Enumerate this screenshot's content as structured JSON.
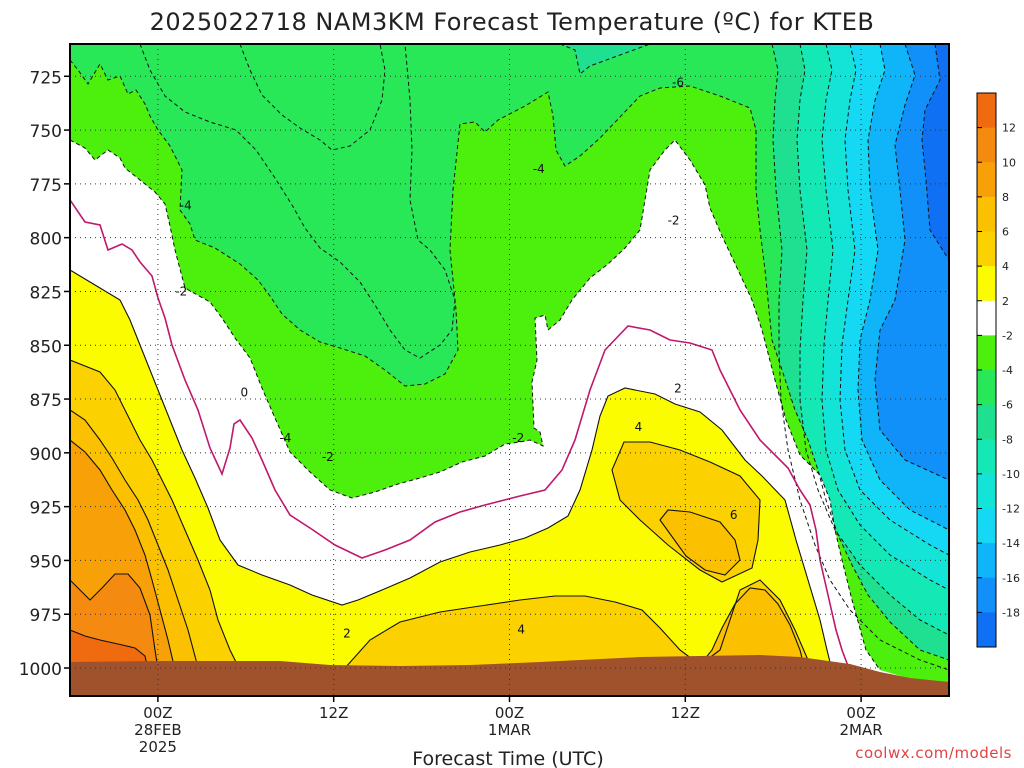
{
  "chart_data": {
    "type": "contour",
    "title": "2025022718 NAM3KM Forecast Temperature (ºC) for KTEB",
    "xlabel": "Forecast Time (UTC)",
    "ylabel": "",
    "credit": "coolwx.com/models",
    "y_ticks": [
      "725",
      "750",
      "775",
      "800",
      "825",
      "850",
      "875",
      "900",
      "925",
      "950",
      "975",
      "1000"
    ],
    "y_tick_values": [
      725,
      750,
      775,
      800,
      825,
      850,
      875,
      900,
      925,
      950,
      975,
      1000
    ],
    "ylim": [
      710,
      1013
    ],
    "y_scale": "pressure (hPa), increasing downward",
    "x_ticks": [
      {
        "line1": "00Z",
        "line2": "28FEB",
        "line3": "2025"
      },
      {
        "line1": "12Z",
        "line2": "",
        "line3": ""
      },
      {
        "line1": "00Z",
        "line2": "1MAR",
        "line3": ""
      },
      {
        "line1": "12Z",
        "line2": "",
        "line3": ""
      },
      {
        "line1": "00Z",
        "line2": "2MAR",
        "line3": ""
      }
    ],
    "x_tick_hours": [
      6,
      18,
      30,
      42,
      54
    ],
    "xlim": [
      0,
      60
    ],
    "grid": true,
    "colorbar": {
      "labels": [
        "12",
        "10",
        "8",
        "6",
        "4",
        "2",
        "-2",
        "-4",
        "-6",
        "-8",
        "-10",
        "-12",
        "-14",
        "-16",
        "-18"
      ],
      "bins": [
        {
          "range": "> 12",
          "color": "#f06a10"
        },
        {
          "range": "10 to 12",
          "color": "#f58a10"
        },
        {
          "range": "8 to 10",
          "color": "#f8a008"
        },
        {
          "range": "6 to 8",
          "color": "#fbc000"
        },
        {
          "range": "4 to 6",
          "color": "#fbd200"
        },
        {
          "range": "2 to 4",
          "color": "#fcfc00"
        },
        {
          "range": "-2 to 2",
          "color": "#ffffff"
        },
        {
          "range": "-4 to -2",
          "color": "#4cf00c"
        },
        {
          "range": "-6 to -4",
          "color": "#28e858"
        },
        {
          "range": "-8 to -6",
          "color": "#1ee090"
        },
        {
          "range": "-10 to -8",
          "color": "#14e8b4"
        },
        {
          "range": "-12 to -10",
          "color": "#14e4d8"
        },
        {
          "range": "-14 to -12",
          "color": "#14d8f4"
        },
        {
          "range": "-16 to -14",
          "color": "#10b4f8"
        },
        {
          "range": "-18 to -16",
          "color": "#1090f8"
        },
        {
          "range": "< -18",
          "color": "#1070f4"
        }
      ]
    },
    "contour_labels": [
      {
        "text": "-6",
        "hour": 41.5,
        "p": 728
      },
      {
        "text": "-4",
        "hour": 7.9,
        "p": 785
      },
      {
        "text": "-4",
        "hour": 32.0,
        "p": 768
      },
      {
        "text": "-4",
        "hour": 14.7,
        "p": 893
      },
      {
        "text": "-2",
        "hour": 7.6,
        "p": 825
      },
      {
        "text": "-2",
        "hour": 41.2,
        "p": 792
      },
      {
        "text": "-2",
        "hour": 30.6,
        "p": 893
      },
      {
        "text": "-2",
        "hour": 17.6,
        "p": 902
      },
      {
        "text": "0",
        "hour": 11.9,
        "p": 872
      },
      {
        "text": "2",
        "hour": 41.5,
        "p": 870
      },
      {
        "text": "2",
        "hour": 18.9,
        "p": 984
      },
      {
        "text": "4",
        "hour": 38.8,
        "p": 888
      },
      {
        "text": "4",
        "hour": 30.8,
        "p": 982
      },
      {
        "text": "6",
        "hour": 45.3,
        "p": 929
      }
    ],
    "notes": "Time-height cross section: x = forecast hour from 2025-02-27 18Z, y = pressure level (hPa). Shaded field = temperature (ºC); solid contours >= 0 ºC (0 ºC in magenta), dashed contours < 0 ºC. Brown area at bottom = terrain / below ground."
  }
}
